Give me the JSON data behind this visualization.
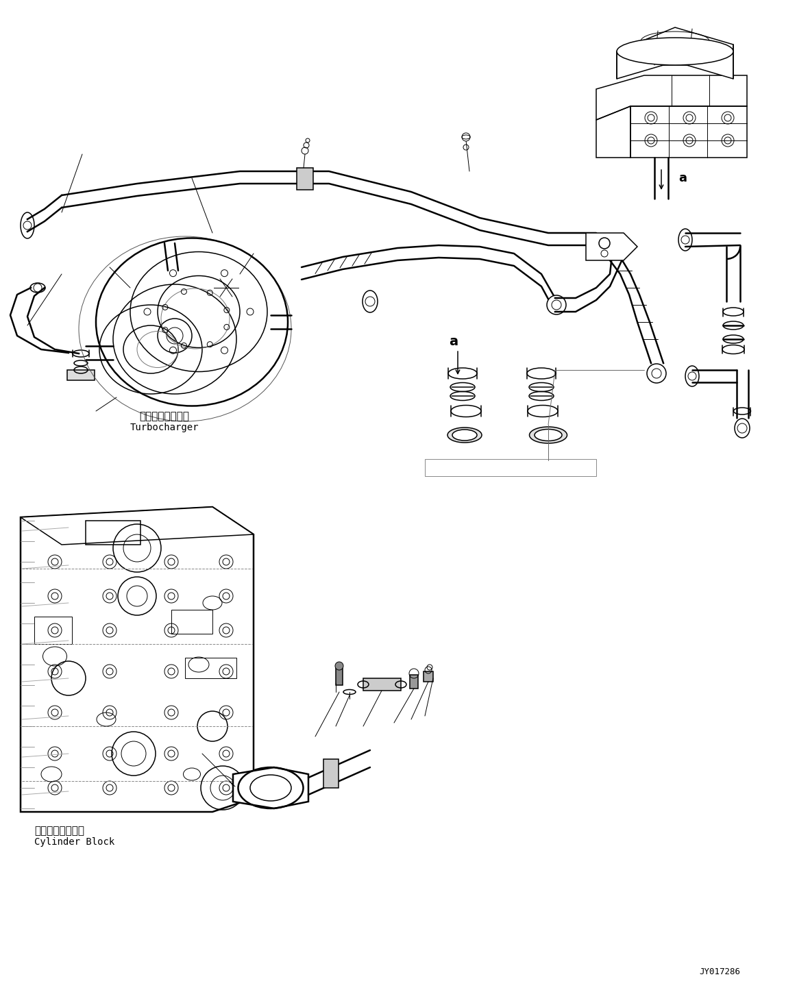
{
  "background_color": "#ffffff",
  "line_color": "#000000",
  "label_turbocharger_jp": "ターボチャージャ",
  "label_turbocharger_en": "Turbocharger",
  "label_cylinder_jp": "シリンダブロック",
  "label_cylinder_en": "Cylinder Block",
  "label_ref": "a",
  "part_number": "JY017286",
  "fig_width": 11.63,
  "fig_height": 14.45,
  "dpi": 100
}
